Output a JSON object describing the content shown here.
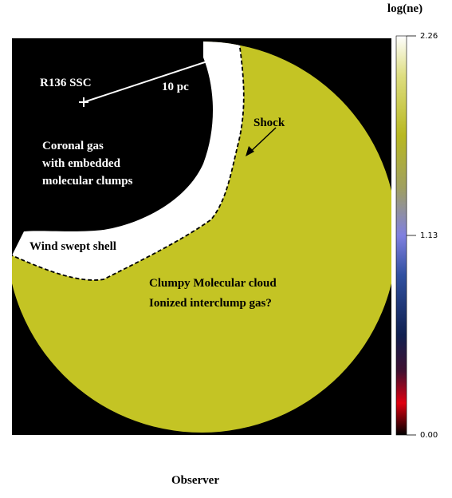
{
  "figure": {
    "colorbar": {
      "title": "log(ne)",
      "lim": [
        0,
        2.26
      ],
      "ticks": [
        {
          "value": 0,
          "label": "0.00"
        },
        1.13,
        2.26
      ]
    },
    "labels": {
      "source": "R136 SSC",
      "scale": "10 pc",
      "cavity": [
        "Coronal gas",
        "with embedded",
        "molecular clumps"
      ],
      "shock": "Shock",
      "shell": "Wind swept shell",
      "cloud": [
        "Clumpy Molecular cloud",
        "Ionized interclump gas?"
      ],
      "observer": "Observer"
    }
  }
}
